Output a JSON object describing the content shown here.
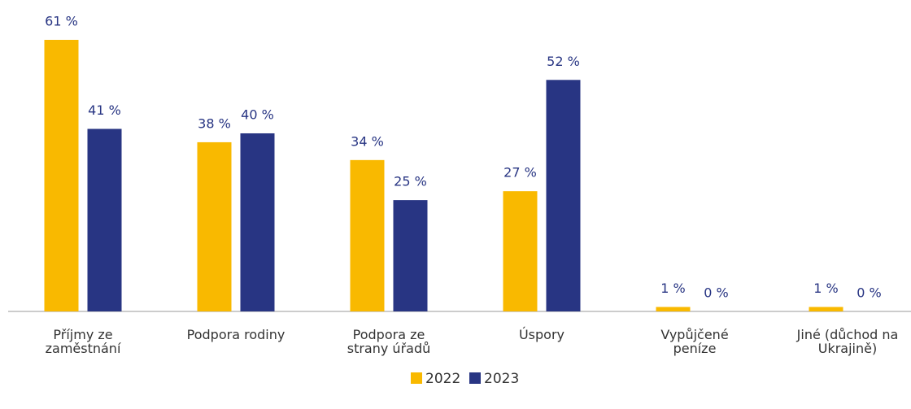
{
  "chart_data": {
    "type": "bar",
    "categories": [
      "Příjmy ze zaměstnání",
      "Podpora rodiny",
      "Podpora ze strany úřadů",
      "Úspory",
      "Vypůjčené peníze",
      "Jiné (důchod na Ukrajině)"
    ],
    "series": [
      {
        "name": "2022",
        "color": "#f9b900",
        "values": [
          61,
          38,
          34,
          27,
          1,
          1
        ],
        "value_labels": [
          "61 %",
          "38 %",
          "34 %",
          "27 %",
          "1 %",
          "1 %"
        ]
      },
      {
        "name": "2023",
        "color": "#283583",
        "values": [
          41,
          40,
          25,
          52,
          0,
          0
        ],
        "value_labels": [
          "41 %",
          "40 %",
          "25 %",
          "52 %",
          "0 %",
          "0 %"
        ]
      }
    ],
    "legend": "bottom"
  }
}
